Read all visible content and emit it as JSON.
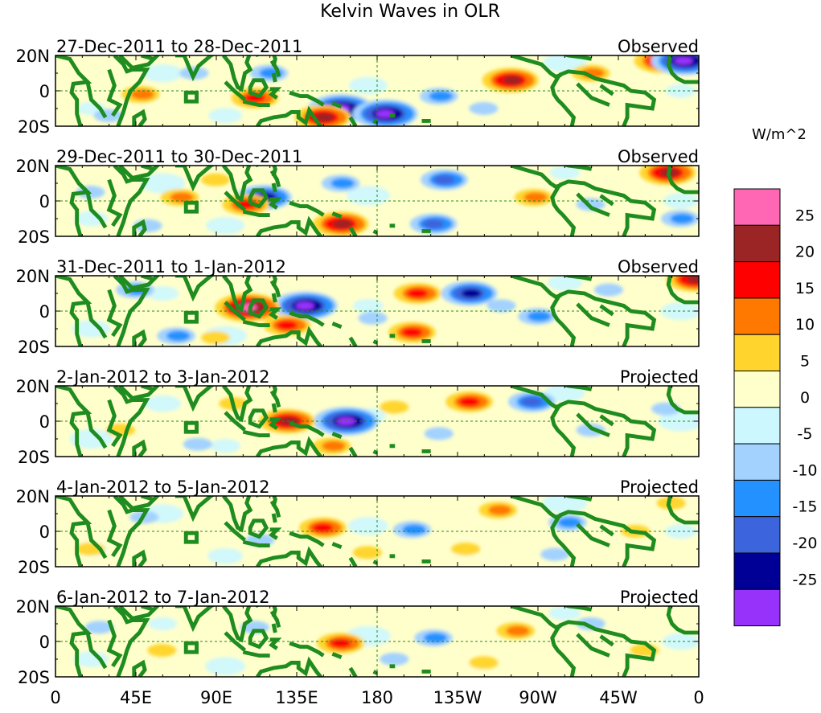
{
  "title": "Kelvin Waves in OLR",
  "colorbar": {
    "units": "W/m^2",
    "levels": [
      "25",
      "20",
      "15",
      "10",
      "5",
      "0",
      "-5",
      "-10",
      "-15",
      "-20",
      "-25"
    ],
    "colors": [
      "#ff66b3",
      "#9b2424",
      "#ff0000",
      "#ff7800",
      "#ffd52d",
      "#ffffcc",
      "#ccf7ff",
      "#a3d2ff",
      "#2391ff",
      "#3c64dc",
      "#000096",
      "#9632fa"
    ]
  },
  "land_color": "#1e8c1e",
  "chart_data": {
    "type": "heatmap",
    "title": "Kelvin Waves in OLR",
    "variable": "OLR anomaly",
    "units": "W/m^2",
    "xlabel": "",
    "ylabel": "",
    "x_ticks": [
      "0",
      "45E",
      "90E",
      "135E",
      "180",
      "135W",
      "90W",
      "45W",
      "0"
    ],
    "y_ticks": [
      "20N",
      "0",
      "20S"
    ],
    "xlim": [
      0,
      360
    ],
    "ylim": [
      -20,
      20
    ],
    "contour_levels": [
      -25,
      -20,
      -15,
      -10,
      -5,
      0,
      5,
      10,
      15,
      20,
      25
    ],
    "panels": [
      {
        "period": "27-Dec-2011 to 28-Dec-2011",
        "status": "Observed",
        "features": [
          {
            "lon": 160,
            "lat": -10,
            "value": -25
          },
          {
            "lon": 185,
            "lat": -13,
            "value": -25
          },
          {
            "lon": 150,
            "lat": -15,
            "value": 20
          },
          {
            "lon": 255,
            "lat": 6,
            "value": 20
          },
          {
            "lon": 112,
            "lat": -4,
            "value": 15
          },
          {
            "lon": 340,
            "lat": 17,
            "value": 20
          },
          {
            "lon": 48,
            "lat": -2,
            "value": 10
          },
          {
            "lon": 120,
            "lat": 10,
            "value": -10
          },
          {
            "lon": 215,
            "lat": -3,
            "value": -10
          },
          {
            "lon": 30,
            "lat": -14,
            "value": -5
          },
          {
            "lon": 352,
            "lat": 17,
            "value": -25
          },
          {
            "lon": 78,
            "lat": 10,
            "value": -5
          },
          {
            "lon": 300,
            "lat": 10,
            "value": 10
          },
          {
            "lon": 240,
            "lat": -10,
            "value": -5
          }
        ]
      },
      {
        "period": "29-Dec-2011 to 30-Dec-2011",
        "status": "Observed",
        "features": [
          {
            "lon": 117,
            "lat": 2,
            "value": -20
          },
          {
            "lon": 160,
            "lat": -13,
            "value": 20
          },
          {
            "lon": 107,
            "lat": -2,
            "value": 15
          },
          {
            "lon": 218,
            "lat": 12,
            "value": -15
          },
          {
            "lon": 212,
            "lat": -13,
            "value": -15
          },
          {
            "lon": 160,
            "lat": 10,
            "value": -10
          },
          {
            "lon": 70,
            "lat": 2,
            "value": 10
          },
          {
            "lon": 52,
            "lat": -14,
            "value": -5
          },
          {
            "lon": 268,
            "lat": 2,
            "value": 10
          },
          {
            "lon": 343,
            "lat": 16,
            "value": 20
          },
          {
            "lon": 300,
            "lat": -2,
            "value": -5
          },
          {
            "lon": 90,
            "lat": 12,
            "value": 5
          },
          {
            "lon": 20,
            "lat": 5,
            "value": -5
          },
          {
            "lon": 350,
            "lat": -10,
            "value": -10
          }
        ]
      },
      {
        "period": "31-Dec-2011 to 1-Jan-2012",
        "status": "Observed",
        "features": [
          {
            "lon": 140,
            "lat": 3,
            "value": -25
          },
          {
            "lon": 108,
            "lat": 2,
            "value": 25
          },
          {
            "lon": 232,
            "lat": 10,
            "value": -20
          },
          {
            "lon": 203,
            "lat": 10,
            "value": 15
          },
          {
            "lon": 200,
            "lat": -12,
            "value": 15
          },
          {
            "lon": 130,
            "lat": -8,
            "value": 15
          },
          {
            "lon": 178,
            "lat": -4,
            "value": -5
          },
          {
            "lon": 68,
            "lat": -14,
            "value": -10
          },
          {
            "lon": 270,
            "lat": -3,
            "value": -10
          },
          {
            "lon": 45,
            "lat": 12,
            "value": -10
          },
          {
            "lon": 358,
            "lat": 18,
            "value": 20
          },
          {
            "lon": 90,
            "lat": -15,
            "value": 5
          },
          {
            "lon": 250,
            "lat": 3,
            "value": -5
          },
          {
            "lon": 310,
            "lat": 12,
            "value": -5
          }
        ]
      },
      {
        "period": "2-Jan-2012 to 3-Jan-2012",
        "status": "Projected",
        "features": [
          {
            "lon": 163,
            "lat": 0,
            "value": -25
          },
          {
            "lon": 130,
            "lat": 0,
            "value": 20
          },
          {
            "lon": 232,
            "lat": 11,
            "value": 15
          },
          {
            "lon": 267,
            "lat": 11,
            "value": -15
          },
          {
            "lon": 155,
            "lat": -14,
            "value": 10
          },
          {
            "lon": 190,
            "lat": 8,
            "value": 5
          },
          {
            "lon": 215,
            "lat": -7,
            "value": -5
          },
          {
            "lon": 80,
            "lat": -13,
            "value": -5
          },
          {
            "lon": 37,
            "lat": -5,
            "value": 5
          },
          {
            "lon": 300,
            "lat": -5,
            "value": -5
          },
          {
            "lon": 342,
            "lat": 7,
            "value": -5
          },
          {
            "lon": 100,
            "lat": 10,
            "value": 5
          }
        ]
      },
      {
        "period": "4-Jan-2012 to 5-Jan-2012",
        "status": "Projected",
        "features": [
          {
            "lon": 150,
            "lat": 2,
            "value": 15
          },
          {
            "lon": 200,
            "lat": 1,
            "value": -10
          },
          {
            "lon": 248,
            "lat": 12,
            "value": 10
          },
          {
            "lon": 287,
            "lat": 5,
            "value": -10
          },
          {
            "lon": 280,
            "lat": -13,
            "value": -5
          },
          {
            "lon": 115,
            "lat": -5,
            "value": -5
          },
          {
            "lon": 230,
            "lat": -10,
            "value": 5
          },
          {
            "lon": 50,
            "lat": 8,
            "value": -5
          },
          {
            "lon": 325,
            "lat": 0,
            "value": 5
          },
          {
            "lon": 20,
            "lat": -10,
            "value": 5
          },
          {
            "lon": 175,
            "lat": -12,
            "value": 5
          },
          {
            "lon": 345,
            "lat": 16,
            "value": 5
          }
        ]
      },
      {
        "period": "6-Jan-2012 to 7-Jan-2012",
        "status": "Projected",
        "features": [
          {
            "lon": 160,
            "lat": -1,
            "value": 15
          },
          {
            "lon": 212,
            "lat": 2,
            "value": -10
          },
          {
            "lon": 258,
            "lat": 6,
            "value": 10
          },
          {
            "lon": 300,
            "lat": 10,
            "value": -5
          },
          {
            "lon": 60,
            "lat": -5,
            "value": 5
          },
          {
            "lon": 112,
            "lat": 8,
            "value": -5
          },
          {
            "lon": 240,
            "lat": -12,
            "value": 5
          },
          {
            "lon": 190,
            "lat": -10,
            "value": -5
          },
          {
            "lon": 330,
            "lat": -5,
            "value": 5
          },
          {
            "lon": 25,
            "lat": 8,
            "value": -5
          }
        ]
      }
    ]
  }
}
